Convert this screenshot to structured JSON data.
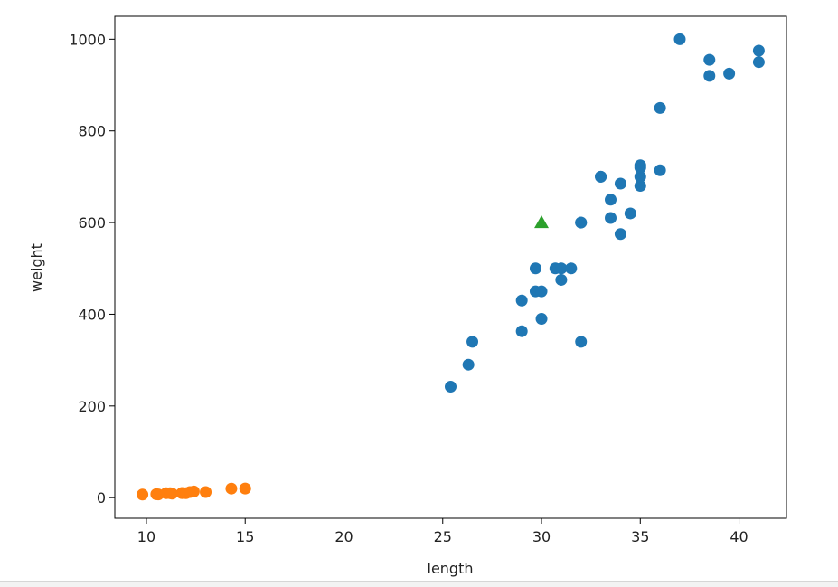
{
  "chart_data": {
    "type": "scatter",
    "xlabel": "length",
    "ylabel": "weight",
    "xlim": [
      8.4,
      42.4
    ],
    "ylim": [
      -45,
      1050
    ],
    "xticks": [
      "10",
      "15",
      "20",
      "25",
      "30",
      "35",
      "40"
    ],
    "yticks": [
      "0",
      "200",
      "400",
      "600",
      "800",
      "1000"
    ],
    "grid": false,
    "colors": {
      "series_1": "#1f77b4",
      "series_2": "#ff7f0e",
      "highlight": "#2ca02c"
    },
    "series": [
      {
        "marker": "circle",
        "color": "#1f77b4",
        "points": [
          [
            25.4,
            242
          ],
          [
            26.3,
            290
          ],
          [
            26.5,
            340
          ],
          [
            29.0,
            363
          ],
          [
            29.0,
            430
          ],
          [
            29.7,
            450
          ],
          [
            29.7,
            500
          ],
          [
            30.0,
            390
          ],
          [
            30.0,
            450
          ],
          [
            30.7,
            500
          ],
          [
            31.0,
            475
          ],
          [
            31.0,
            500
          ],
          [
            31.5,
            500
          ],
          [
            32.0,
            340
          ],
          [
            32.0,
            600
          ],
          [
            32.0,
            600
          ],
          [
            33.0,
            700
          ],
          [
            33.0,
            700
          ],
          [
            33.5,
            610
          ],
          [
            33.5,
            650
          ],
          [
            34.0,
            575
          ],
          [
            34.0,
            685
          ],
          [
            34.5,
            620
          ],
          [
            35.0,
            680
          ],
          [
            35.0,
            700
          ],
          [
            35.0,
            725
          ],
          [
            35.0,
            720
          ],
          [
            36.0,
            714
          ],
          [
            36.0,
            850
          ],
          [
            37.0,
            1000
          ],
          [
            38.5,
            920
          ],
          [
            38.5,
            955
          ],
          [
            39.5,
            925
          ],
          [
            41.0,
            975
          ],
          [
            41.0,
            950
          ]
        ]
      },
      {
        "marker": "circle",
        "color": "#ff7f0e",
        "points": [
          [
            9.8,
            6.7
          ],
          [
            10.5,
            7.5
          ],
          [
            10.6,
            7.0
          ],
          [
            11.0,
            9.7
          ],
          [
            11.2,
            9.8
          ],
          [
            11.3,
            8.7
          ],
          [
            11.8,
            10.0
          ],
          [
            11.8,
            9.9
          ],
          [
            12.0,
            9.8
          ],
          [
            12.2,
            12.2
          ],
          [
            12.4,
            13.4
          ],
          [
            13.0,
            12.2
          ],
          [
            14.3,
            19.7
          ],
          [
            15.0,
            19.9
          ]
        ]
      },
      {
        "marker": "triangle",
        "color": "#2ca02c",
        "points": [
          [
            30,
            600
          ]
        ]
      }
    ]
  }
}
